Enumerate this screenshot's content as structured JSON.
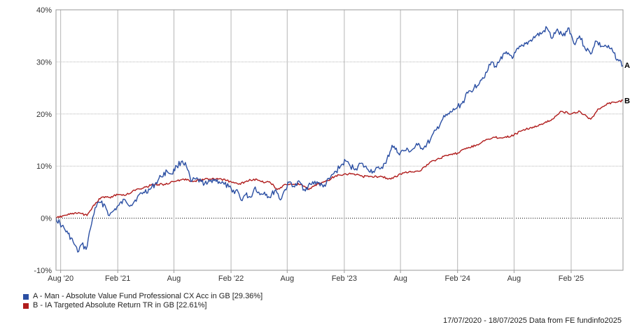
{
  "chart_data": {
    "type": "line",
    "x_axis": {
      "tick_labels": [
        "Aug '20",
        "Feb '21",
        "Aug",
        "Feb '22",
        "Aug",
        "Feb '23",
        "Aug",
        "Feb '24",
        "Aug",
        "Feb '25"
      ],
      "tick_dates": [
        "2020-08-01",
        "2021-02-01",
        "2021-08-01",
        "2022-02-01",
        "2022-08-01",
        "2023-02-01",
        "2023-08-01",
        "2024-02-01",
        "2024-08-01",
        "2025-02-01"
      ],
      "range": [
        "2020-07-17",
        "2025-07-18"
      ]
    },
    "y_axis": {
      "tick_labels": [
        "40%",
        "30%",
        "20%",
        "10%",
        "0%",
        "-10%"
      ],
      "tick_values": [
        40,
        30,
        20,
        10,
        0,
        -10
      ],
      "ylim": [
        -10,
        40
      ],
      "unit": "%"
    },
    "grid": true,
    "zero_line": "dotted",
    "series": [
      {
        "name": "A - Man - Absolute Value Fund Professional CX Acc in GB [29.36%]",
        "end_label": "A",
        "color": "#2b4fa3",
        "points": [
          [
            "2020-07-17",
            0.0
          ],
          [
            "2020-08-05",
            -1.5
          ],
          [
            "2020-08-25",
            -3.0
          ],
          [
            "2020-09-10",
            -4.5
          ],
          [
            "2020-09-25",
            -6.5
          ],
          [
            "2020-10-08",
            -5.0
          ],
          [
            "2020-10-22",
            -6.0
          ],
          [
            "2020-11-05",
            -2.0
          ],
          [
            "2020-11-20",
            2.0
          ],
          [
            "2020-12-05",
            3.0
          ],
          [
            "2020-12-22",
            2.5
          ],
          [
            "2021-01-05",
            0.5
          ],
          [
            "2021-01-20",
            1.5
          ],
          [
            "2021-02-05",
            2.5
          ],
          [
            "2021-02-25",
            3.5
          ],
          [
            "2021-03-15",
            2.5
          ],
          [
            "2021-04-05",
            4.0
          ],
          [
            "2021-04-25",
            5.0
          ],
          [
            "2021-05-15",
            5.5
          ],
          [
            "2021-06-01",
            6.5
          ],
          [
            "2021-06-20",
            8.0
          ],
          [
            "2021-07-10",
            9.0
          ],
          [
            "2021-07-25",
            8.5
          ],
          [
            "2021-08-10",
            10.0
          ],
          [
            "2021-08-28",
            11.0
          ],
          [
            "2021-09-10",
            10.0
          ],
          [
            "2021-09-25",
            7.0
          ],
          [
            "2021-10-10",
            7.5
          ],
          [
            "2021-10-28",
            7.0
          ],
          [
            "2021-11-15",
            6.5
          ],
          [
            "2021-12-05",
            7.5
          ],
          [
            "2021-12-25",
            7.0
          ],
          [
            "2022-01-10",
            6.5
          ],
          [
            "2022-01-25",
            6.0
          ],
          [
            "2022-02-05",
            5.0
          ],
          [
            "2022-02-20",
            5.5
          ],
          [
            "2022-03-05",
            3.5
          ],
          [
            "2022-03-20",
            4.5
          ],
          [
            "2022-04-05",
            4.0
          ],
          [
            "2022-04-20",
            6.0
          ],
          [
            "2022-05-05",
            4.5
          ],
          [
            "2022-05-20",
            5.0
          ],
          [
            "2022-06-05",
            4.0
          ],
          [
            "2022-06-25",
            5.5
          ],
          [
            "2022-07-10",
            3.5
          ],
          [
            "2022-07-25",
            5.5
          ],
          [
            "2022-08-10",
            7.0
          ],
          [
            "2022-08-25",
            6.0
          ],
          [
            "2022-09-10",
            7.0
          ],
          [
            "2022-09-25",
            5.5
          ],
          [
            "2022-10-15",
            6.5
          ],
          [
            "2022-11-05",
            7.0
          ],
          [
            "2022-11-25",
            6.0
          ],
          [
            "2022-12-15",
            7.5
          ],
          [
            "2023-01-05",
            9.0
          ],
          [
            "2023-01-20",
            10.0
          ],
          [
            "2023-02-05",
            11.0
          ],
          [
            "2023-02-20",
            10.0
          ],
          [
            "2023-03-10",
            9.5
          ],
          [
            "2023-03-25",
            10.5
          ],
          [
            "2023-04-15",
            9.5
          ],
          [
            "2023-05-05",
            9.0
          ],
          [
            "2023-05-25",
            9.5
          ],
          [
            "2023-06-15",
            10.5
          ],
          [
            "2023-07-05",
            14.0
          ],
          [
            "2023-07-25",
            12.5
          ],
          [
            "2023-08-15",
            13.0
          ],
          [
            "2023-09-05",
            13.0
          ],
          [
            "2023-09-25",
            14.0
          ],
          [
            "2023-10-15",
            13.5
          ],
          [
            "2023-11-05",
            15.0
          ],
          [
            "2023-11-25",
            17.0
          ],
          [
            "2023-12-15",
            19.0
          ],
          [
            "2024-01-05",
            20.0
          ],
          [
            "2024-01-25",
            21.0
          ],
          [
            "2024-02-15",
            22.0
          ],
          [
            "2024-03-05",
            24.0
          ],
          [
            "2024-03-25",
            25.0
          ],
          [
            "2024-04-15",
            26.5
          ],
          [
            "2024-05-05",
            28.0
          ],
          [
            "2024-05-20",
            30.0
          ],
          [
            "2024-06-05",
            29.0
          ],
          [
            "2024-06-20",
            31.0
          ],
          [
            "2024-07-10",
            31.5
          ],
          [
            "2024-07-30",
            31.0
          ],
          [
            "2024-08-15",
            32.5
          ],
          [
            "2024-09-01",
            33.0
          ],
          [
            "2024-09-20",
            34.0
          ],
          [
            "2024-10-10",
            35.0
          ],
          [
            "2024-10-30",
            35.5
          ],
          [
            "2024-11-15",
            36.5
          ],
          [
            "2024-12-01",
            34.5
          ],
          [
            "2024-12-15",
            36.0
          ],
          [
            "2025-01-05",
            35.0
          ],
          [
            "2025-01-25",
            36.5
          ],
          [
            "2025-02-10",
            33.5
          ],
          [
            "2025-02-28",
            35.0
          ],
          [
            "2025-03-15",
            33.0
          ],
          [
            "2025-04-05",
            31.5
          ],
          [
            "2025-04-20",
            34.0
          ],
          [
            "2025-05-10",
            33.0
          ],
          [
            "2025-05-25",
            33.0
          ],
          [
            "2025-06-15",
            32.0
          ],
          [
            "2025-07-01",
            30.5
          ],
          [
            "2025-07-18",
            29.36
          ]
        ]
      },
      {
        "name": "B - IA Targeted Absolute Return TR in GB [22.61%]",
        "end_label": "B",
        "color": "#b01c1c",
        "points": [
          [
            "2020-07-17",
            0.0
          ],
          [
            "2020-08-10",
            0.5
          ],
          [
            "2020-09-05",
            0.8
          ],
          [
            "2020-10-01",
            1.0
          ],
          [
            "2020-10-25",
            0.5
          ],
          [
            "2020-11-15",
            2.5
          ],
          [
            "2020-12-10",
            4.0
          ],
          [
            "2021-01-05",
            4.0
          ],
          [
            "2021-02-01",
            4.5
          ],
          [
            "2021-03-01",
            4.5
          ],
          [
            "2021-04-01",
            5.5
          ],
          [
            "2021-05-01",
            6.0
          ],
          [
            "2021-06-01",
            6.5
          ],
          [
            "2021-07-01",
            6.5
          ],
          [
            "2021-08-01",
            7.0
          ],
          [
            "2021-09-01",
            7.5
          ],
          [
            "2021-10-01",
            7.0
          ],
          [
            "2021-11-01",
            7.5
          ],
          [
            "2021-12-01",
            7.5
          ],
          [
            "2022-01-01",
            7.5
          ],
          [
            "2022-02-01",
            7.0
          ],
          [
            "2022-02-25",
            6.5
          ],
          [
            "2022-03-20",
            7.0
          ],
          [
            "2022-04-15",
            7.5
          ],
          [
            "2022-05-10",
            7.0
          ],
          [
            "2022-06-05",
            7.0
          ],
          [
            "2022-06-30",
            5.5
          ],
          [
            "2022-07-25",
            6.5
          ],
          [
            "2022-08-20",
            6.5
          ],
          [
            "2022-09-15",
            6.5
          ],
          [
            "2022-10-10",
            5.5
          ],
          [
            "2022-11-05",
            6.5
          ],
          [
            "2022-12-01",
            7.0
          ],
          [
            "2023-01-01",
            8.0
          ],
          [
            "2023-02-01",
            8.5
          ],
          [
            "2023-03-01",
            8.5
          ],
          [
            "2023-04-01",
            8.0
          ],
          [
            "2023-05-01",
            8.0
          ],
          [
            "2023-06-01",
            8.0
          ],
          [
            "2023-07-01",
            7.5
          ],
          [
            "2023-08-01",
            8.5
          ],
          [
            "2023-09-01",
            9.0
          ],
          [
            "2023-10-01",
            9.0
          ],
          [
            "2023-11-01",
            10.5
          ],
          [
            "2023-12-01",
            11.5
          ],
          [
            "2024-01-01",
            12.0
          ],
          [
            "2024-02-01",
            12.5
          ],
          [
            "2024-03-01",
            13.5
          ],
          [
            "2024-04-01",
            14.0
          ],
          [
            "2024-05-01",
            15.0
          ],
          [
            "2024-06-01",
            15.5
          ],
          [
            "2024-07-01",
            15.5
          ],
          [
            "2024-08-01",
            16.0
          ],
          [
            "2024-09-01",
            17.0
          ],
          [
            "2024-10-01",
            17.5
          ],
          [
            "2024-11-01",
            18.0
          ],
          [
            "2024-12-01",
            19.0
          ],
          [
            "2025-01-01",
            20.5
          ],
          [
            "2025-02-01",
            20.0
          ],
          [
            "2025-03-01",
            20.5
          ],
          [
            "2025-04-05",
            19.0
          ],
          [
            "2025-05-01",
            21.0
          ],
          [
            "2025-06-01",
            22.0
          ],
          [
            "2025-07-01",
            22.3
          ],
          [
            "2025-07-18",
            22.61
          ]
        ]
      }
    ]
  },
  "legend": {
    "items": [
      {
        "label": "A - Man - Absolute Value Fund Professional CX Acc in GB [29.36%]",
        "color": "#2b4fa3"
      },
      {
        "label": "B - IA Targeted Absolute Return TR in GB [22.61%]",
        "color": "#b01c1c"
      }
    ]
  },
  "footer": "17/07/2020 - 18/07/2025 Data from FE fundinfo2025"
}
